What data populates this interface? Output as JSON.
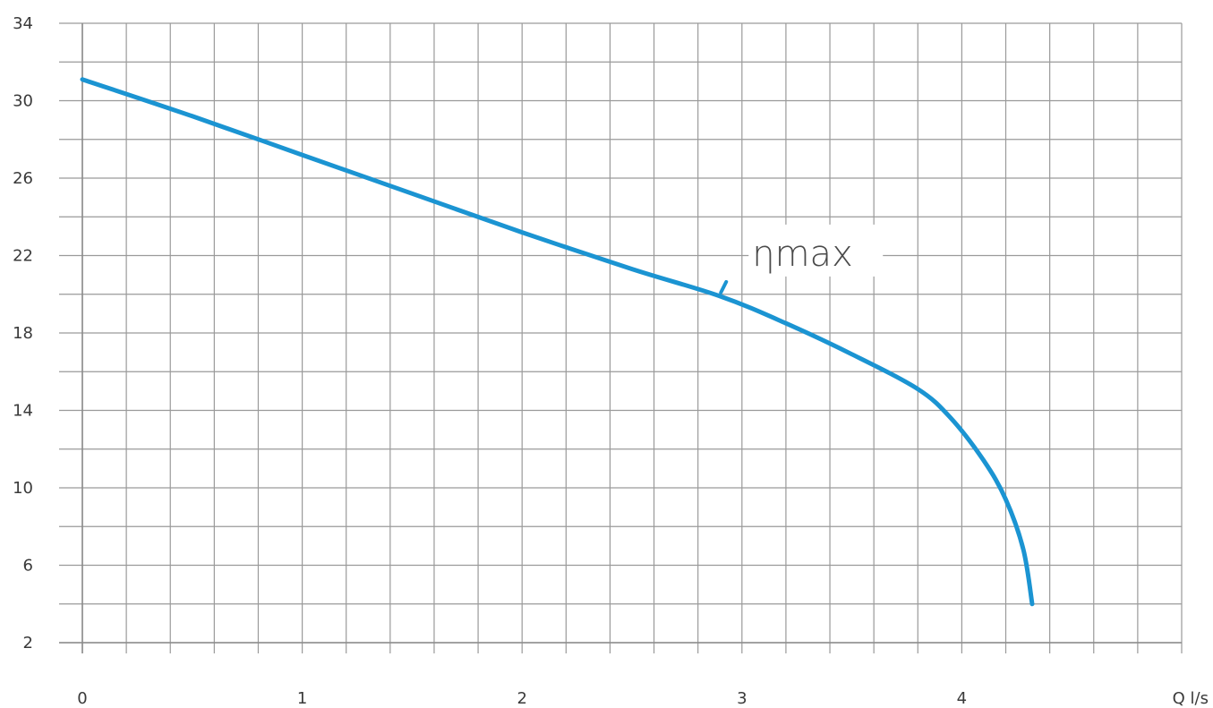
{
  "chart_data": {
    "type": "line",
    "title": "",
    "xlabel": "Q l/s",
    "ylabel": "",
    "xlim": [
      0,
      5
    ],
    "ylim": [
      2,
      34
    ],
    "x_ticks": [
      "0",
      "1",
      "2",
      "3",
      "4"
    ],
    "x_tick_values": [
      0,
      1,
      2,
      3,
      4
    ],
    "y_ticks": [
      "2",
      "6",
      "10",
      "14",
      "18",
      "22",
      "26",
      "30",
      "34"
    ],
    "y_tick_values": [
      2,
      6,
      10,
      14,
      18,
      22,
      26,
      30,
      34
    ],
    "x_minor_step": 0.2,
    "y_minor_step": 2,
    "grid": true,
    "legend": "none",
    "colors": {
      "curve": "#1b94d2",
      "grid": "#9a9a9a",
      "axis": "#8c8c8c",
      "tick_text": "#3a3a3a"
    },
    "series": [
      {
        "x": [
          0,
          0.5,
          1.0,
          1.5,
          2.0,
          2.5,
          2.9,
          3.2,
          3.5,
          3.8,
          3.95,
          4.1,
          4.2,
          4.28,
          4.32
        ],
        "values": [
          31.1,
          29.2,
          27.2,
          25.2,
          23.2,
          21.3,
          19.9,
          18.5,
          16.9,
          15.1,
          13.6,
          11.4,
          9.4,
          6.8,
          4.0
        ]
      }
    ],
    "annotations": [
      {
        "text": "ηmax",
        "x": 2.9,
        "y": 19.9
      }
    ]
  }
}
